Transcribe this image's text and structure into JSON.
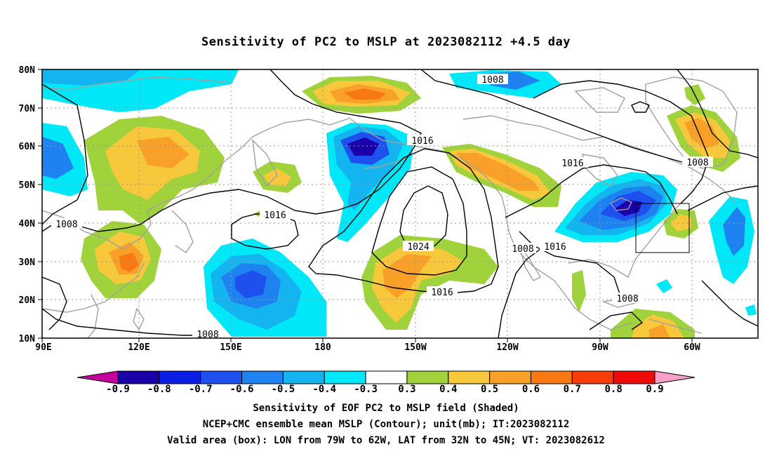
{
  "title": "Sensitivity of PC2 to MSLP at 2023082112 +4.5 day",
  "axes": {
    "lon_ticks": [
      "90E",
      "120E",
      "150E",
      "180",
      "150W",
      "120W",
      "90W",
      "60W"
    ],
    "lat_ticks": [
      "80N",
      "70N",
      "60N",
      "50N",
      "40N",
      "30N",
      "20N",
      "10N"
    ]
  },
  "contour_labels": [
    "1008",
    "1016",
    "1016",
    "1008",
    "1016",
    "1008",
    "1024",
    "1016",
    "1008",
    "1016",
    "1008",
    "1008"
  ],
  "colorbar": {
    "labels": [
      "-0.9",
      "-0.8",
      "-0.7",
      "-0.6",
      "-0.5",
      "-0.4",
      "-0.3",
      "0.3",
      "0.4",
      "0.5",
      "0.6",
      "0.7",
      "0.8",
      "0.9"
    ],
    "colors": [
      "#1a00a8",
      "#0a1ee6",
      "#1e50f0",
      "#1e82f0",
      "#14b4f0",
      "#00e8f8",
      "#ffffff",
      "#a0d23c",
      "#f8c83c",
      "#f8a028",
      "#f87814",
      "#f83c0a",
      "#f00a0a"
    ],
    "low_arrow": "#c800a0",
    "high_arrow": "#f8a0c8"
  },
  "captions": {
    "line1": "Sensitivity of EOF PC2 to MSLP field (Shaded)",
    "line2": "NCEP+CMC ensemble mean MSLP (Contour); unit(mb); IT:2023082112",
    "line3": "Valid area (box): LON from 79W to 62W, LAT from 32N to 45N; VT: 2023082612"
  }
}
